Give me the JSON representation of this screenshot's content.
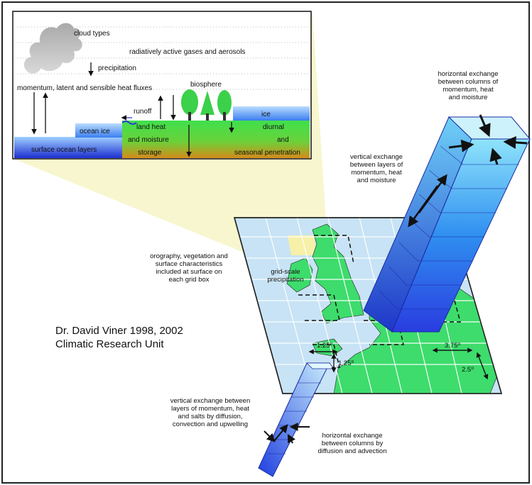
{
  "inset": {
    "cloud_types": "cloud types",
    "gases": "radiatively active gases and aerosols",
    "precipitation": "precipitation",
    "fluxes": "momentum, latent and sensible heat fluxes",
    "biosphere": "biosphere",
    "runoff": "runoff",
    "ice": "ice",
    "ocean_ice": "ocean ice",
    "land_heat": "land heat",
    "and_moisture": "and moisture",
    "storage": "storage",
    "diurnal": "diurnal",
    "and": "and",
    "seasonal": "seasonal penetration",
    "surface_ocean": "surface ocean layers"
  },
  "labels": {
    "horiz_top": [
      "horizontal exchange",
      "between columns of",
      "momentum, heat",
      "and moisture"
    ],
    "vert_top": [
      "vertical exchange",
      "between layers of",
      "momentum, heat",
      "and moisture"
    ],
    "orography": [
      "orography, vegetation and",
      "surface characteristics",
      "included at surface on",
      "each grid box"
    ],
    "gridscale": [
      "grid-scale",
      "precipitation"
    ],
    "credit": [
      "Dr. David Viner 1998, 2002",
      "Climatic Research Unit"
    ],
    "res_lon": "1.25⁰",
    "res_lat": "1.25⁰",
    "atm_lon": "3.75⁰",
    "atm_lat": "2.5⁰",
    "ocean_vert": [
      "vertical exchange between",
      "layers of momentum, heat",
      "and salts by diffusion,",
      "convection and upwelling"
    ],
    "ocean_horiz": [
      "horizontal exchange",
      "between columns by",
      "diffusion and advection"
    ]
  },
  "colors": {
    "border": "#222222",
    "beam": "#f6f4c6",
    "plane": "#c8e3f5",
    "land": "#3ddc6c",
    "column": "#3aa6ee",
    "ice": "#5aa9f2",
    "soil": "#c98a1a"
  }
}
